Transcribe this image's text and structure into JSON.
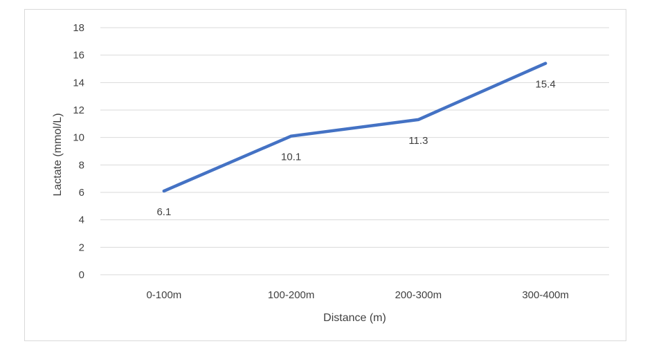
{
  "chart_data": {
    "type": "line",
    "title": "",
    "xlabel": "Distance (m)",
    "ylabel": "Lactate (mmol/L)",
    "categories": [
      "0-100m",
      "100-200m",
      "200-300m",
      "300-400m"
    ],
    "series": [
      {
        "values": [
          6.1,
          10.1,
          11.3,
          15.4
        ],
        "color": "#4472c4"
      }
    ],
    "data_labels": [
      "6.1",
      "10.1",
      "11.3",
      "15.4"
    ],
    "ylim": [
      0,
      18
    ],
    "yticks": [
      0,
      2,
      4,
      6,
      8,
      10,
      12,
      14,
      16,
      18
    ],
    "ytick_labels": [
      "0",
      "2",
      "4",
      "6",
      "8",
      "10",
      "12",
      "14",
      "16",
      "18"
    ],
    "grid": true,
    "legend": "none",
    "gridline_color": "#d9d9d9"
  }
}
